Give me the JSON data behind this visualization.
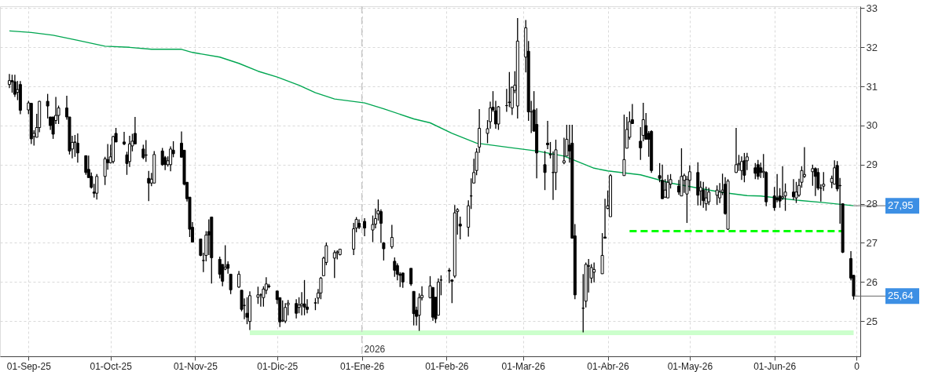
{
  "chart_data": {
    "type": "candlestick",
    "color": "#000000",
    "grid": true,
    "xlim": [
      "2025-08-23",
      "2026-07-01"
    ],
    "xticks": [
      {
        "value": "2025-09-01",
        "label": "01-Sep-25"
      },
      {
        "value": "2025-10-01",
        "label": "01-Oct-25"
      },
      {
        "value": "2025-11-01",
        "label": "01-Nov-25"
      },
      {
        "value": "2025-12-01",
        "label": "01-Dic-25"
      },
      {
        "value": "2026-01-01",
        "label": "01-Ene-26"
      },
      {
        "value": "2026-02-01",
        "label": "01-Feb-26"
      },
      {
        "value": "2026-03-01",
        "label": "01-Mar-26"
      },
      {
        "value": "2026-04-01",
        "label": "01-Abr-26"
      },
      {
        "value": "2026-05-01",
        "label": "01-May-26"
      },
      {
        "value": "2026-06-01",
        "label": "01-Jun-26"
      },
      {
        "value": "2026-07-01",
        "label": "0"
      }
    ],
    "ylim": [
      24.1,
      33.05
    ],
    "yticks": [
      25,
      26,
      27,
      28,
      29,
      30,
      31,
      32,
      33
    ],
    "x": [
      "2025-08-25",
      "2025-08-26",
      "2025-08-27",
      "2025-08-28",
      "2025-08-29",
      "2025-09-01",
      "2025-09-02",
      "2025-09-03",
      "2025-09-04",
      "2025-09-05",
      "2025-09-08",
      "2025-09-09",
      "2025-09-10",
      "2025-09-11",
      "2025-09-12",
      "2025-09-15",
      "2025-09-16",
      "2025-09-17",
      "2025-09-18",
      "2025-09-19",
      "2025-09-22",
      "2025-09-23",
      "2025-09-24",
      "2025-09-25",
      "2025-09-26",
      "2025-09-29",
      "2025-09-30",
      "2025-10-01",
      "2025-10-02",
      "2025-10-03",
      "2025-10-06",
      "2025-10-07",
      "2025-10-08",
      "2025-10-09",
      "2025-10-10",
      "2025-10-13",
      "2025-10-14",
      "2025-10-15",
      "2025-10-16",
      "2025-10-17",
      "2025-10-20",
      "2025-10-21",
      "2025-10-22",
      "2025-10-23",
      "2025-10-24",
      "2025-10-27",
      "2025-10-28",
      "2025-10-29",
      "2025-10-30",
      "2025-10-31",
      "2025-11-03",
      "2025-11-04",
      "2025-11-05",
      "2025-11-06",
      "2025-11-07",
      "2025-11-10",
      "2025-11-11",
      "2025-11-12",
      "2025-11-13",
      "2025-11-14",
      "2025-11-17",
      "2025-11-18",
      "2025-11-19",
      "2025-11-20",
      "2025-11-21",
      "2025-11-24",
      "2025-11-25",
      "2025-11-26",
      "2025-11-27",
      "2025-11-28",
      "2025-12-01",
      "2025-12-02",
      "2025-12-03",
      "2025-12-04",
      "2025-12-05",
      "2025-12-08",
      "2025-12-09",
      "2025-12-10",
      "2025-12-11",
      "2025-12-12",
      "2025-12-15",
      "2025-12-16",
      "2025-12-17",
      "2025-12-18",
      "2025-12-19",
      "2025-12-22",
      "2025-12-23",
      "2025-12-24",
      "2025-12-29",
      "2025-12-30",
      "2025-12-31",
      "2026-01-02",
      "2026-01-05",
      "2026-01-06",
      "2026-01-07",
      "2026-01-08",
      "2026-01-09",
      "2026-01-12",
      "2026-01-13",
      "2026-01-14",
      "2026-01-15",
      "2026-01-16",
      "2026-01-19",
      "2026-01-20",
      "2026-01-21",
      "2026-01-22",
      "2026-01-23",
      "2026-01-26",
      "2026-01-27",
      "2026-01-28",
      "2026-01-29",
      "2026-01-30",
      "2026-02-02",
      "2026-02-03",
      "2026-02-04",
      "2026-02-05",
      "2026-02-06",
      "2026-02-09",
      "2026-02-10",
      "2026-02-11",
      "2026-02-12",
      "2026-02-13",
      "2026-02-16",
      "2026-02-17",
      "2026-02-18",
      "2026-02-19",
      "2026-02-20",
      "2026-02-23",
      "2026-02-24",
      "2026-02-25",
      "2026-02-26",
      "2026-02-27",
      "2026-03-02",
      "2026-03-03",
      "2026-03-04",
      "2026-03-05",
      "2026-03-06",
      "2026-03-09",
      "2026-03-10",
      "2026-03-11",
      "2026-03-12",
      "2026-03-13",
      "2026-03-16",
      "2026-03-17",
      "2026-03-18",
      "2026-03-19",
      "2026-03-20",
      "2026-03-23",
      "2026-03-24",
      "2026-03-25",
      "2026-03-26",
      "2026-03-27",
      "2026-03-30",
      "2026-03-31",
      "2026-04-01",
      "2026-04-02",
      "2026-04-07",
      "2026-04-08",
      "2026-04-09",
      "2026-04-10",
      "2026-04-13",
      "2026-04-14",
      "2026-04-15",
      "2026-04-16",
      "2026-04-17",
      "2026-04-20",
      "2026-04-21",
      "2026-04-22",
      "2026-04-23",
      "2026-04-24",
      "2026-04-27",
      "2026-04-28",
      "2026-04-29",
      "2026-04-30",
      "2026-05-01",
      "2026-05-04",
      "2026-05-05",
      "2026-05-06",
      "2026-05-07",
      "2026-05-08",
      "2026-05-11",
      "2026-05-12",
      "2026-05-13",
      "2026-05-14",
      "2026-05-15",
      "2026-05-18",
      "2026-05-19",
      "2026-05-20",
      "2026-05-21",
      "2026-05-22",
      "2026-05-25",
      "2026-05-26",
      "2026-05-27",
      "2026-05-28",
      "2026-05-29",
      "2026-06-01",
      "2026-06-02",
      "2026-06-03",
      "2026-06-04",
      "2026-06-05",
      "2026-06-08",
      "2026-06-09",
      "2026-06-10",
      "2026-06-11",
      "2026-06-12",
      "2026-06-15",
      "2026-06-16",
      "2026-06-17",
      "2026-06-18",
      "2026-06-19",
      "2026-06-22",
      "2026-06-23",
      "2026-06-24",
      "2026-06-25",
      "2026-06-26",
      "2026-06-29",
      "2026-06-30"
    ],
    "ohlc": [
      [
        31.05,
        31.32,
        30.96,
        31.15
      ],
      [
        31.15,
        31.3,
        30.84,
        31.12
      ],
      [
        31.12,
        31.3,
        30.73,
        30.8
      ],
      [
        30.85,
        31.14,
        30.65,
        30.92
      ],
      [
        31.05,
        31.14,
        30.29,
        30.39
      ],
      [
        30.4,
        30.63,
        30.29,
        30.58
      ],
      [
        30.57,
        30.57,
        29.53,
        29.66
      ],
      [
        29.72,
        29.88,
        29.49,
        29.8
      ],
      [
        29.7,
        30.3,
        29.7,
        29.95
      ],
      [
        29.95,
        30.63,
        29.83,
        30.62
      ],
      [
        30.62,
        30.81,
        30.18,
        30.5
      ],
      [
        30.22,
        30.22,
        29.89,
        30.0
      ],
      [
        30.22,
        30.22,
        29.66,
        29.78
      ],
      [
        30.13,
        30.73,
        30.04,
        30.26
      ],
      [
        30.26,
        30.51,
        30.04,
        30.45
      ],
      [
        30.45,
        30.76,
        30.15,
        30.22
      ],
      [
        30.22,
        30.22,
        29.26,
        29.35
      ],
      [
        29.4,
        29.74,
        29.16,
        29.57
      ],
      [
        29.57,
        29.76,
        29.2,
        29.58
      ],
      [
        29.55,
        29.8,
        29.05,
        29.3
      ],
      [
        29.23,
        29.23,
        28.74,
        28.8
      ],
      [
        28.88,
        29.23,
        28.67,
        28.67
      ],
      [
        28.7,
        28.8,
        28.39,
        28.42
      ],
      [
        28.3,
        28.51,
        28.16,
        28.27
      ],
      [
        28.27,
        28.76,
        28.11,
        28.7
      ],
      [
        28.7,
        29.2,
        28.48,
        29.15
      ],
      [
        29.13,
        29.53,
        28.87,
        29.05
      ],
      [
        29.05,
        29.51,
        29.03,
        29.2
      ],
      [
        29.08,
        29.74,
        29.03,
        29.72
      ],
      [
        29.8,
        29.94,
        29.58,
        29.58
      ],
      [
        29.58,
        29.84,
        29.5,
        29.53
      ],
      [
        29.25,
        29.33,
        28.74,
        29.03
      ],
      [
        29.08,
        29.74,
        28.94,
        29.53
      ],
      [
        29.48,
        29.79,
        29.34,
        29.6
      ],
      [
        29.8,
        30.22,
        29.53,
        29.53
      ],
      [
        29.4,
        29.51,
        29.14,
        29.18
      ],
      [
        29.24,
        29.63,
        29.07,
        29.25
      ],
      [
        28.65,
        28.84,
        28.07,
        28.53
      ],
      [
        28.53,
        28.79,
        28.45,
        28.63
      ],
      [
        28.53,
        29.35,
        28.53,
        29.26
      ],
      [
        29.35,
        29.43,
        28.97,
        29.0
      ],
      [
        29.18,
        29.22,
        28.86,
        29.0
      ],
      [
        29.0,
        29.21,
        28.95,
        29.1
      ],
      [
        29.0,
        29.47,
        28.83,
        29.4
      ],
      [
        29.37,
        29.6,
        29.19,
        29.28
      ],
      [
        29.55,
        29.85,
        29.19,
        29.19
      ],
      [
        29.37,
        29.37,
        28.47,
        28.5
      ],
      [
        28.55,
        28.55,
        28.06,
        28.13
      ],
      [
        28.17,
        28.17,
        27.15,
        27.35
      ],
      [
        27.4,
        27.53,
        27.02,
        27.02
      ],
      [
        27.1,
        27.11,
        26.66,
        26.68
      ],
      [
        26.55,
        26.75,
        26.25,
        26.55
      ],
      [
        26.68,
        27.3,
        26.53,
        27.2
      ],
      [
        27.29,
        27.6,
        26.69,
        27.2
      ],
      [
        27.66,
        27.66,
        25.96,
        26.62
      ],
      [
        26.58,
        26.65,
        26.09,
        26.2
      ],
      [
        26.45,
        26.45,
        25.89,
        26.02
      ],
      [
        26.33,
        26.94,
        26.3,
        26.38
      ],
      [
        26.45,
        26.53,
        26.21,
        26.35
      ],
      [
        26.2,
        26.2,
        25.69,
        25.8
      ],
      [
        25.87,
        26.28,
        25.85,
        26.2
      ],
      [
        25.79,
        25.79,
        25.25,
        25.3
      ],
      [
        25.4,
        25.58,
        25.05,
        25.4
      ],
      [
        25.2,
        25.61,
        24.92,
        25.1
      ],
      [
        24.99,
        25.76,
        24.77,
        25.65
      ],
      [
        25.61,
        25.88,
        25.44,
        25.67
      ],
      [
        25.67,
        25.71,
        25.37,
        25.67
      ],
      [
        25.6,
        25.89,
        25.37,
        25.82
      ],
      [
        25.79,
        26.12,
        25.69,
        25.95
      ],
      [
        25.9,
        25.95,
        25.84,
        25.88
      ],
      [
        25.77,
        25.77,
        25.44,
        25.55
      ],
      [
        25.6,
        25.6,
        24.85,
        24.98
      ],
      [
        25.0,
        25.53,
        24.98,
        25.02
      ],
      [
        25.0,
        25.46,
        24.95,
        25.35
      ],
      [
        25.42,
        25.54,
        25.15,
        25.46
      ],
      [
        25.45,
        25.56,
        25.07,
        25.2
      ],
      [
        25.35,
        25.61,
        25.2,
        25.41
      ],
      [
        25.4,
        25.74,
        25.15,
        25.44
      ],
      [
        25.44,
        26.05,
        25.15,
        25.36
      ],
      [
        25.36,
        25.56,
        25.2,
        25.3
      ],
      [
        25.46,
        25.59,
        25.28,
        25.47
      ],
      [
        25.59,
        25.82,
        25.44,
        25.72
      ],
      [
        25.72,
        26.13,
        25.56,
        26.1
      ],
      [
        26.16,
        26.65,
        26.16,
        26.61
      ],
      [
        26.5,
        27.01,
        26.43,
        26.93
      ],
      [
        26.61,
        26.81,
        26.1,
        26.75
      ],
      [
        26.75,
        26.81,
        26.58,
        26.77
      ],
      [
        26.7,
        26.84,
        26.68,
        26.84
      ],
      [
        26.84,
        27.51,
        26.69,
        27.36
      ],
      [
        27.38,
        27.66,
        27.27,
        27.6
      ],
      [
        27.5,
        27.6,
        27.35,
        27.4
      ],
      [
        27.55,
        27.63,
        27.17,
        27.38
      ],
      [
        27.33,
        27.7,
        27.02,
        27.47
      ],
      [
        27.48,
        27.88,
        27.37,
        27.62
      ],
      [
        27.74,
        28.11,
        27.57,
        27.82
      ],
      [
        27.8,
        27.86,
        27.0,
        27.5
      ],
      [
        27.0,
        27.02,
        26.55,
        26.85
      ],
      [
        26.9,
        27.46,
        26.85,
        27.14
      ],
      [
        26.53,
        26.63,
        26.13,
        26.3
      ],
      [
        26.42,
        26.48,
        26.04,
        26.2
      ],
      [
        26.2,
        26.25,
        25.87,
        26.17
      ],
      [
        26.23,
        26.23,
        25.85,
        26.0
      ],
      [
        26.35,
        26.35,
        25.9,
        25.95
      ],
      [
        25.76,
        25.76,
        24.89,
        25.19
      ],
      [
        25.28,
        25.37,
        24.89,
        25.12
      ],
      [
        25.15,
        25.71,
        24.75,
        25.6
      ],
      [
        25.6,
        25.89,
        25.53,
        25.66
      ],
      [
        25.6,
        26.15,
        25.58,
        25.9
      ],
      [
        25.86,
        25.86,
        25.01,
        25.1
      ],
      [
        25.61,
        25.61,
        24.95,
        25.06
      ],
      [
        25.15,
        26.09,
        25.15,
        26.0
      ],
      [
        26.05,
        26.17,
        25.66,
        26.05
      ],
      [
        26.3,
        26.36,
        25.97,
        26.28
      ],
      [
        26.05,
        26.07,
        25.46,
        26.02
      ],
      [
        26.15,
        27.97,
        26.1,
        27.77
      ],
      [
        27.8,
        27.89,
        27.21,
        27.85
      ],
      [
        27.48,
        27.67,
        27.09,
        27.43
      ],
      [
        27.4,
        28.09,
        27.16,
        27.95
      ],
      [
        28.2,
        28.65,
        27.87,
        28.2
      ],
      [
        28.53,
        29.15,
        28.53,
        28.8
      ],
      [
        28.85,
        29.42,
        28.73,
        29.32
      ],
      [
        29.45,
        30.42,
        29.3,
        29.93
      ],
      [
        29.8,
        30.14,
        29.55,
        29.92
      ],
      [
        30.1,
        30.61,
        29.92,
        30.45
      ],
      [
        30.47,
        30.88,
        30.35,
        30.4
      ],
      [
        30.38,
        30.63,
        29.92,
        30.04
      ],
      [
        30.04,
        30.5,
        29.89,
        30.48
      ],
      [
        30.51,
        30.94,
        30.35,
        30.51
      ],
      [
        30.6,
        31.37,
        30.47,
        30.59
      ],
      [
        30.45,
        31.0,
        30.27,
        30.98
      ],
      [
        30.9,
        31.39,
        30.83,
        31.03
      ],
      [
        30.5,
        32.75,
        30.18,
        32.16
      ],
      [
        31.75,
        32.7,
        31.36,
        32.5
      ],
      [
        31.9,
        32.16,
        30.12,
        30.35
      ],
      [
        30.35,
        30.63,
        29.81,
        30.35
      ],
      [
        30.4,
        30.88,
        29.84,
        29.86
      ],
      [
        30.03,
        30.44,
        28.65,
        29.3
      ],
      [
        29.0,
        29.35,
        28.35,
        28.8
      ],
      [
        29.55,
        30.12,
        29.4,
        29.51
      ],
      [
        29.25,
        29.58,
        29.16,
        29.27
      ],
      [
        28.8,
        29.34,
        28.1,
        28.8
      ],
      [
        28.8,
        29.64,
        28.35,
        29.38
      ],
      [
        29.05,
        29.69,
        29.01,
        29.1
      ],
      [
        29.22,
        30.02,
        29.22,
        29.65
      ],
      [
        29.5,
        30.02,
        29.05,
        29.35
      ],
      [
        29.55,
        30.02,
        27.12,
        27.12
      ],
      [
        27.18,
        27.48,
        25.56,
        25.67
      ],
      [
        25.33,
        26.2,
        24.71,
        25.33
      ],
      [
        25.51,
        26.5,
        25.35,
        26.45
      ],
      [
        26.4,
        26.59,
        25.73,
        26.42
      ],
      [
        26.1,
        26.46,
        25.97,
        26.37
      ],
      [
        26.25,
        26.5,
        25.99,
        26.32
      ],
      [
        26.21,
        27.25,
        26.21,
        26.68
      ],
      [
        27.15,
        28.13,
        27.12,
        27.12
      ],
      [
        27.88,
        28.34,
        27.86,
        27.95
      ],
      [
        27.67,
        28.76,
        27.67,
        28.72
      ],
      [
        28.72,
        30.28,
        28.72,
        29.13
      ],
      [
        29.42,
        30.22,
        29.42,
        29.9
      ],
      [
        29.7,
        30.36,
        29.64,
        30.1
      ],
      [
        30.15,
        30.55,
        30.05,
        30.05
      ],
      [
        29.6,
        29.96,
        29.12,
        29.43
      ],
      [
        29.75,
        30.58,
        29.6,
        30.15
      ],
      [
        30.0,
        30.32,
        29.64,
        29.65
      ],
      [
        29.8,
        29.86,
        29.2,
        29.65
      ],
      [
        29.85,
        29.88,
        28.79,
        28.85
      ],
      [
        28.72,
        29.04,
        28.55,
        28.65
      ],
      [
        28.6,
        29.0,
        28.13,
        28.13
      ],
      [
        28.17,
        28.63,
        28.15,
        28.35
      ],
      [
        28.15,
        28.74,
        28.15,
        28.55
      ],
      [
        28.5,
        28.76,
        28.39,
        28.62
      ],
      [
        28.45,
        28.61,
        28.23,
        28.3
      ],
      [
        28.2,
        29.42,
        28.2,
        28.7
      ],
      [
        28.6,
        28.77,
        28.28,
        28.72
      ],
      [
        28.25,
        28.71,
        27.51,
        28.62
      ],
      [
        28.6,
        28.98,
        28.33,
        28.82
      ],
      [
        28.8,
        29.06,
        27.96,
        28.22
      ],
      [
        28.33,
        28.58,
        27.96,
        28.42
      ],
      [
        28.35,
        28.56,
        27.9,
        28.08
      ],
      [
        28.0,
        28.44,
        27.82,
        28.15
      ],
      [
        28.05,
        28.41,
        27.97,
        28.3
      ],
      [
        28.22,
        28.47,
        27.97,
        28.35
      ],
      [
        28.15,
        28.53,
        28.02,
        28.3
      ],
      [
        28.3,
        28.77,
        28.22,
        28.35
      ],
      [
        28.5,
        28.68,
        27.72,
        27.75
      ],
      [
        27.35,
        28.63,
        27.33,
        28.58
      ],
      [
        28.8,
        29.94,
        28.79,
        29.0
      ],
      [
        29.0,
        29.25,
        28.84,
        29.03
      ],
      [
        28.85,
        29.21,
        28.61,
        29.08
      ],
      [
        29.1,
        29.3,
        28.55,
        28.73
      ],
      [
        29.1,
        29.3,
        28.86,
        29.2
      ],
      [
        28.92,
        29.04,
        28.63,
        28.78
      ],
      [
        29.0,
        29.12,
        28.62,
        28.7
      ],
      [
        28.92,
        29.05,
        28.66,
        28.8
      ],
      [
        28.8,
        29.27,
        28.66,
        28.83
      ],
      [
        28.8,
        28.83,
        27.94,
        28.05
      ],
      [
        28.2,
        28.43,
        27.82,
        27.9
      ],
      [
        28.15,
        28.76,
        28.04,
        28.1
      ],
      [
        28.2,
        28.4,
        27.9,
        28.07
      ],
      [
        28.15,
        28.96,
        28.1,
        28.18
      ],
      [
        28.2,
        28.52,
        27.82,
        28.3
      ],
      [
        28.3,
        28.63,
        28.1,
        28.18
      ],
      [
        28.15,
        28.56,
        28.02,
        28.3
      ],
      [
        28.22,
        28.64,
        28.18,
        28.47
      ],
      [
        28.55,
        28.96,
        28.41,
        28.85
      ],
      [
        28.7,
        29.45,
        28.66,
        28.75
      ],
      [
        28.82,
        29.0,
        28.46,
        28.9
      ],
      [
        28.9,
        28.93,
        28.2,
        28.7
      ],
      [
        28.8,
        28.91,
        28.35,
        28.4
      ],
      [
        28.4,
        28.5,
        28.06,
        28.4
      ],
      [
        28.45,
        28.81,
        28.33,
        28.5
      ],
      [
        28.55,
        28.72,
        28.4,
        28.65
      ],
      [
        28.5,
        29.11,
        28.5,
        28.92
      ],
      [
        28.98,
        29.09,
        28.32,
        28.38
      ],
      [
        28.47,
        28.66,
        27.49,
        28.46
      ],
      [
        28.0,
        28.0,
        26.74,
        26.76
      ],
      [
        26.6,
        26.79,
        26.04,
        26.1
      ],
      [
        26.17,
        26.18,
        25.55,
        25.64
      ]
    ],
    "series": [
      {
        "type": "line",
        "color": "#00a651",
        "x": [
          "2025-08-25",
          "2025-09-02",
          "2025-09-10",
          "2025-09-19",
          "2025-09-29",
          "2025-10-08",
          "2025-10-16",
          "2025-10-27",
          "2025-10-31",
          "2025-11-10",
          "2025-11-17",
          "2025-11-24",
          "2025-12-01",
          "2025-12-09",
          "2025-12-15",
          "2025-12-22",
          "2026-01-02",
          "2026-01-09",
          "2026-01-20",
          "2026-01-26",
          "2026-02-03",
          "2026-02-12",
          "2026-02-25",
          "2026-03-06",
          "2026-03-16",
          "2026-03-27",
          "2026-04-01",
          "2026-04-13",
          "2026-04-24",
          "2026-05-05",
          "2026-05-13",
          "2026-05-22",
          "2026-05-27",
          "2026-06-08",
          "2026-06-19",
          "2026-06-30"
        ],
        "values": [
          32.42,
          32.38,
          32.31,
          32.18,
          32.03,
          32.0,
          31.95,
          31.95,
          31.87,
          31.75,
          31.59,
          31.39,
          31.24,
          31.03,
          30.84,
          30.68,
          30.58,
          30.43,
          30.17,
          30.07,
          29.8,
          29.55,
          29.43,
          29.35,
          29.22,
          28.91,
          28.84,
          28.74,
          28.53,
          28.39,
          28.29,
          28.21,
          28.2,
          28.1,
          28.03,
          27.95
        ]
      },
      {
        "type": "line",
        "color": "#00ff00",
        "line_style": "dashed",
        "x": [
          "2026-04-09",
          "2026-06-26"
        ],
        "values": [
          27.3,
          27.3
        ]
      },
      {
        "type": "line",
        "color": "#ccffcc",
        "x": [
          "2025-11-21",
          "2026-06-30"
        ],
        "values": [
          24.7,
          24.7
        ]
      }
    ],
    "ref_lines": [
      {
        "axis": "x",
        "value": "2026-01-01",
        "label": "2026",
        "color": "#c8c8c8",
        "line_style": "dashed"
      }
    ],
    "annotations": [
      {
        "text": "27,95",
        "x": "2026-06-30",
        "y": 27.95
      },
      {
        "text": "25,64",
        "x": "2026-06-30",
        "y": 25.64
      }
    ]
  }
}
